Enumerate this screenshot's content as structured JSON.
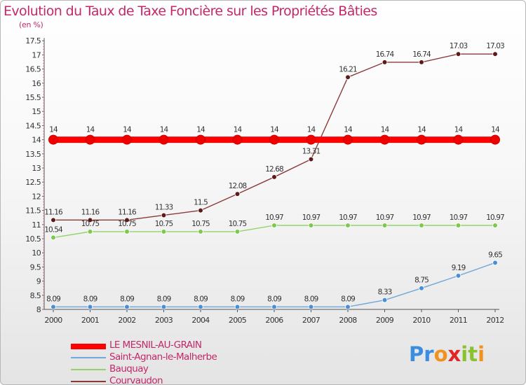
{
  "title": "Evolution du Taux de Taxe Foncière sur les Propriétés Bâties",
  "subtitle": "(en %)",
  "logo": {
    "letters": [
      "P",
      "r",
      "o",
      "x",
      "i",
      "t",
      "i"
    ],
    "colors": [
      "#3a8de0",
      "#3a8de0",
      "#f1921c",
      "#e02626",
      "#8ac22f",
      "#8ac22f",
      "#f1921c"
    ]
  },
  "chart_data": {
    "type": "line",
    "title": "Evolution du Taux de Taxe Foncière sur les Propriétés Bâties",
    "ylabel": "(en %)",
    "xlabel": "",
    "x": [
      "2000",
      "2001",
      "2002",
      "2003",
      "2004",
      "2005",
      "2006",
      "2007",
      "2008",
      "2009",
      "2010",
      "2011",
      "2012"
    ],
    "ylim": [
      8,
      17.5
    ],
    "yticks": [
      "8",
      "8.5",
      "9",
      "9.5",
      "10",
      "10.5",
      "11",
      "11.5",
      "12",
      "12.5",
      "13",
      "13.5",
      "14",
      "14.5",
      "15",
      "15.5",
      "16",
      "16.5",
      "17",
      "17.5"
    ],
    "grid": false,
    "legend": "bottom-left",
    "series": [
      {
        "name": "LE MESNIL-AU-GRAIN",
        "color": "#ff0000",
        "marker": "#ee0000",
        "values": [
          14,
          14,
          14,
          14,
          14,
          14,
          14,
          14,
          14,
          14,
          14,
          14,
          14
        ],
        "labels": [
          "14",
          "14",
          "14",
          "14",
          "14",
          "14",
          "14",
          "14",
          "14",
          "14",
          "14",
          "14",
          "14"
        ]
      },
      {
        "name": "Saint-Agnan-le-Malherbe",
        "color": "#6fa8dc",
        "marker": "#4a8fd4",
        "values": [
          8.09,
          8.09,
          8.09,
          8.09,
          8.09,
          8.09,
          8.09,
          8.09,
          8.09,
          8.33,
          8.75,
          9.19,
          9.65
        ],
        "labels": [
          "8.09",
          "8.09",
          "8.09",
          "8.09",
          "8.09",
          "8.09",
          "8.09",
          "8.09",
          "8.09",
          "8.33",
          "8.75",
          "9.19",
          "9.65"
        ]
      },
      {
        "name": "Bauquay",
        "color": "#93d36a",
        "marker": "#7cc94e",
        "values": [
          10.54,
          10.75,
          10.75,
          10.75,
          10.75,
          10.75,
          10.97,
          10.97,
          10.97,
          10.97,
          10.97,
          10.97,
          10.97
        ],
        "labels": [
          "10.54",
          "10.75",
          "10.75",
          "10.75",
          "10.75",
          "10.75",
          "10.97",
          "10.97",
          "10.97",
          "10.97",
          "10.97",
          "10.97",
          "10.97"
        ]
      },
      {
        "name": "Courvaudon",
        "color": "#8b3a3a",
        "marker": "#5c1a1a",
        "values": [
          11.16,
          11.16,
          11.16,
          11.33,
          11.5,
          12.08,
          12.68,
          13.31,
          16.21,
          16.74,
          16.74,
          17.03,
          17.03
        ],
        "labels": [
          "11.16",
          "11.16",
          "11.16",
          "11.33",
          "11.5",
          "12.08",
          "12.68",
          "13.31",
          "16.21",
          "16.74",
          "16.74",
          "17.03",
          "17.03"
        ]
      }
    ]
  }
}
